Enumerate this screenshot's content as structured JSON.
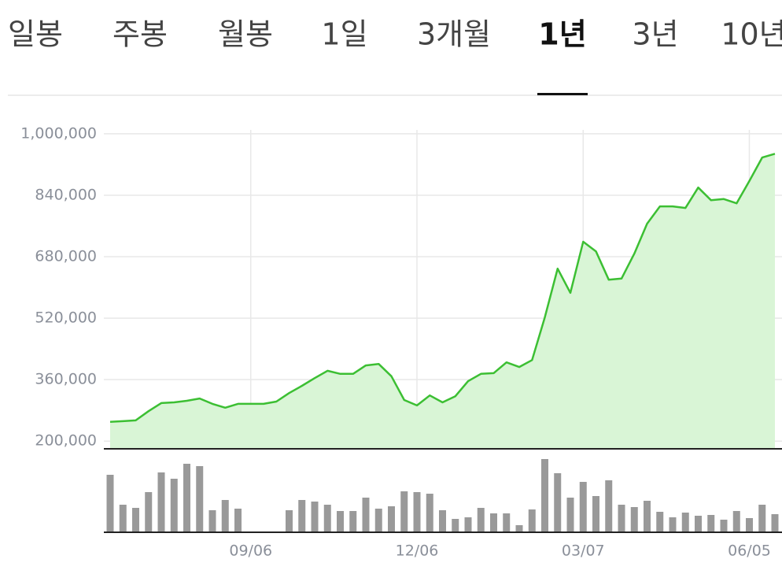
{
  "tabs": [
    "일봉",
    "주봉",
    "월봉",
    "1일",
    "3개월",
    "1년",
    "3년",
    "10년"
  ],
  "selected_tab": 5,
  "chart_data": {
    "type": "line",
    "categories": [
      null,
      null,
      null,
      null,
      null,
      null,
      null,
      null,
      null,
      null,
      null,
      "09/06",
      null,
      null,
      null,
      null,
      null,
      null,
      null,
      null,
      null,
      null,
      null,
      null,
      "12/06",
      null,
      null,
      null,
      null,
      null,
      null,
      null,
      null,
      null,
      null,
      null,
      null,
      "03/07",
      null,
      null,
      null,
      null,
      null,
      null,
      null,
      null,
      null,
      null,
      null,
      null,
      "06/05",
      null,
      null
    ],
    "series": [
      {
        "color": "#3cbf33",
        "area_color": "#d9f5d6",
        "values": [
          250000,
          252000,
          254000,
          278000,
          299000,
          301000,
          305000,
          311000,
          297000,
          287000,
          297000,
          297000,
          297000,
          303000,
          325000,
          344000,
          364000,
          383000,
          375000,
          375000,
          397000,
          401000,
          369000,
          307000,
          293000,
          319000,
          301000,
          317000,
          356000,
          375000,
          377000,
          405000,
          393000,
          411000,
          522000,
          649000,
          586000,
          719000,
          694000,
          620000,
          623000,
          688000,
          766000,
          811000,
          811000,
          807000,
          860000,
          827000,
          830000,
          819000,
          877000,
          938000,
          948000
        ]
      }
    ],
    "volume": {
      "color": "#999999",
      "values": [
        73,
        35,
        31,
        51,
        76,
        68,
        87,
        84,
        28,
        41,
        30,
        null,
        null,
        null,
        28,
        41,
        39,
        35,
        27,
        27,
        44,
        30,
        33,
        52,
        51,
        49,
        28,
        17,
        19,
        31,
        24,
        24,
        9,
        29,
        93,
        75,
        44,
        64,
        46,
        66,
        35,
        32,
        40,
        26,
        19,
        25,
        21,
        22,
        16,
        27,
        18,
        35,
        23
      ]
    },
    "ylim": [
      180000,
      1010000
    ],
    "yticks": [
      {
        "value": 200000,
        "label": "200,000"
      },
      {
        "value": 360000,
        "label": "360,000"
      },
      {
        "value": 520000,
        "label": "520,000"
      },
      {
        "value": 680000,
        "label": "680,000"
      },
      {
        "value": 840000,
        "label": "840,000"
      },
      {
        "value": 1000000,
        "label": "1,000,000"
      }
    ],
    "grid": true
  }
}
